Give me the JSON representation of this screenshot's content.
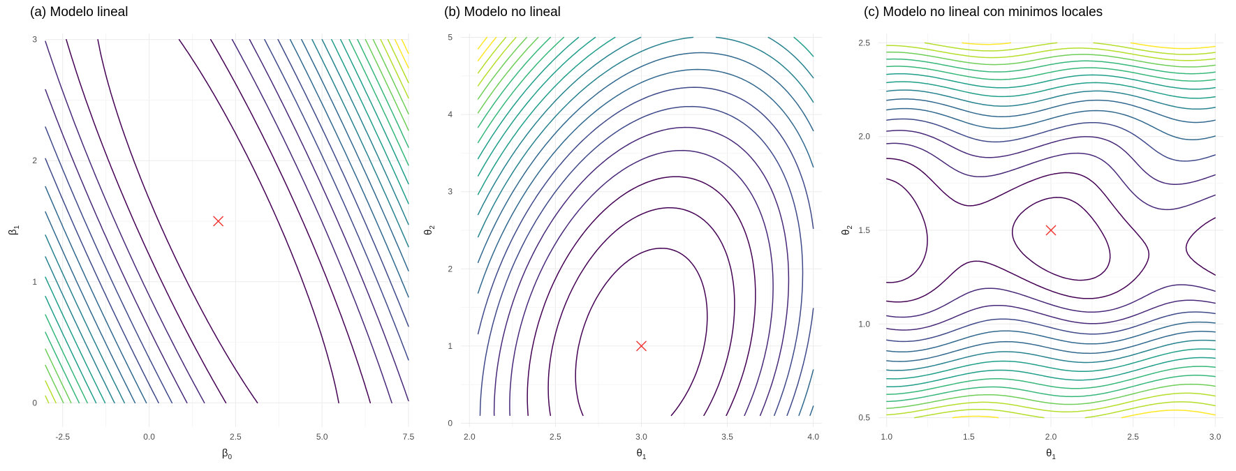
{
  "colors": {
    "viridis": [
      "#440154",
      "#482878",
      "#3e4989",
      "#31688e",
      "#26828e",
      "#1f9e89",
      "#35b779",
      "#6ece58",
      "#b5de2b",
      "#fde725"
    ],
    "marker": "#f0312d",
    "grid": "#ebebeb"
  },
  "chart_data": [
    {
      "type": "contour",
      "title": "(a) Modelo lineal",
      "xlabel": {
        "base": "β",
        "sub": "0"
      },
      "ylabel": {
        "base": "β",
        "sub": "1"
      },
      "xlim": [
        -3,
        7.5
      ],
      "ylim": [
        -0.2,
        3.05
      ],
      "xticks": [
        -2.5,
        0,
        2.5,
        5,
        7.5
      ],
      "xtick_labels": [
        "-2.5",
        "0.0",
        "2.5",
        "5.0",
        "7.5"
      ],
      "yticks": [
        0,
        1,
        2,
        3
      ],
      "ytick_labels": [
        "0",
        "1",
        "2",
        "3"
      ],
      "minimum": {
        "x": 2,
        "y": 1.5
      },
      "grid": true,
      "legend": "none"
    },
    {
      "type": "contour",
      "title": "(b) Modelo no lineal",
      "xlabel": {
        "base": "θ",
        "sub": "1"
      },
      "ylabel": {
        "base": "θ",
        "sub": "2"
      },
      "xlim": [
        1.95,
        4.05
      ],
      "ylim": [
        -0.05,
        5.05
      ],
      "xticks": [
        2,
        2.5,
        3,
        3.5,
        4
      ],
      "xtick_labels": [
        "2.0",
        "2.5",
        "3.0",
        "3.5",
        "4.0"
      ],
      "yticks": [
        0,
        1,
        2,
        3,
        4,
        5
      ],
      "ytick_labels": [
        "0",
        "1",
        "2",
        "3",
        "4",
        "5"
      ],
      "minimum": {
        "x": 3,
        "y": 1
      },
      "grid": true,
      "legend": "none"
    },
    {
      "type": "contour",
      "title": "(c) Modelo no lineal con minimos locales",
      "xlabel": {
        "base": "θ",
        "sub": "1"
      },
      "ylabel": {
        "base": "θ",
        "sub": "2"
      },
      "xlim": [
        0.95,
        3.05
      ],
      "ylim": [
        0.45,
        2.55
      ],
      "xticks": [
        1,
        1.5,
        2,
        2.5,
        3
      ],
      "xtick_labels": [
        "1.0",
        "1.5",
        "2.0",
        "2.5",
        "3.0"
      ],
      "yticks": [
        0.5,
        1,
        1.5,
        2,
        2.5
      ],
      "ytick_labels": [
        "0.5",
        "1.0",
        "1.5",
        "2.0",
        "2.5"
      ],
      "minimum": {
        "x": 2,
        "y": 1.5
      },
      "grid": true,
      "legend": "none"
    }
  ]
}
